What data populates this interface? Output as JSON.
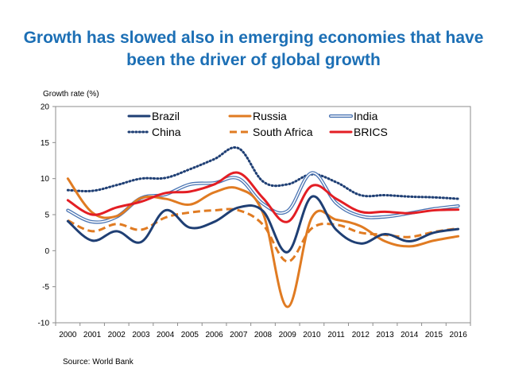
{
  "title_line1": "Growth has slowed also in emerging economies that have",
  "title_line2": "been the driver of global growth",
  "source": "Source: World Bank",
  "chart_data": {
    "type": "line",
    "ylabel": "Growth rate (%)",
    "ylim": [
      -10,
      20
    ],
    "yticks": [
      "20",
      "15",
      "10",
      "5",
      "0",
      "-5",
      "-10"
    ],
    "x": [
      "2000",
      "2001",
      "2002",
      "2003",
      "2004",
      "2005",
      "2006",
      "2007",
      "2008",
      "2009",
      "2010",
      "2011",
      "2012",
      "2013",
      "2014",
      "2015",
      "2016"
    ],
    "grid": false,
    "legend_position": "top-center",
    "series": [
      {
        "name": "Brazil",
        "color": "#1f3f74",
        "style": "solid",
        "values": [
          4.1,
          1.4,
          2.7,
          1.2,
          5.6,
          3.2,
          4.0,
          6.0,
          5.5,
          -0.2,
          7.5,
          2.9,
          1.0,
          2.3,
          1.3,
          2.5,
          3.0
        ]
      },
      {
        "name": "Russia",
        "color": "#e07b22",
        "style": "solid",
        "values": [
          10.0,
          5.3,
          4.8,
          7.3,
          7.2,
          6.4,
          8.1,
          8.6,
          5.2,
          -7.8,
          4.6,
          4.3,
          3.4,
          1.3,
          0.6,
          1.4,
          2.0
        ]
      },
      {
        "name": "India",
        "color": "#4a74b3",
        "style": "double",
        "values": [
          5.6,
          4.0,
          4.7,
          7.3,
          7.8,
          9.2,
          9.4,
          10.0,
          6.5,
          5.5,
          10.8,
          6.6,
          4.8,
          4.7,
          5.2,
          5.8,
          6.2
        ]
      },
      {
        "name": "China",
        "color": "#1f3f74",
        "style": "dotted",
        "values": [
          8.4,
          8.3,
          9.1,
          10.0,
          10.1,
          11.3,
          12.7,
          14.2,
          9.6,
          9.2,
          10.6,
          9.5,
          7.7,
          7.7,
          7.5,
          7.4,
          7.2
        ]
      },
      {
        "name": "South Africa",
        "color": "#e07b22",
        "style": "dashed",
        "values": [
          4.2,
          2.7,
          3.7,
          2.9,
          4.6,
          5.3,
          5.6,
          5.6,
          3.6,
          -1.5,
          3.1,
          3.6,
          2.5,
          2.2,
          1.9,
          2.6,
          3.1
        ]
      },
      {
        "name": "BRICS",
        "color": "#e31e24",
        "style": "solid",
        "values": [
          7.0,
          5.0,
          6.0,
          6.8,
          8.0,
          8.2,
          9.2,
          10.8,
          7.3,
          4.0,
          9.0,
          7.2,
          5.4,
          5.4,
          5.2,
          5.6,
          5.7
        ]
      }
    ]
  }
}
